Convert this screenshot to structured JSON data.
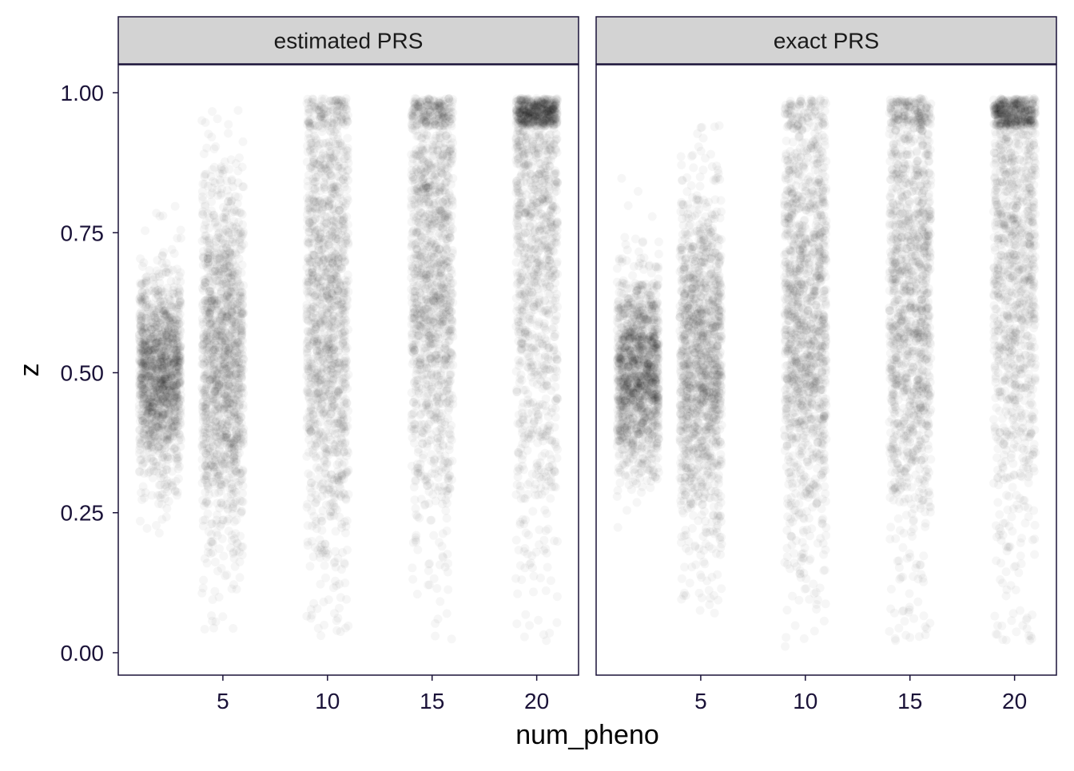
{
  "chart_data": {
    "type": "scatter",
    "xlabel": "num_pheno",
    "ylabel": "z",
    "xlim": [
      0,
      22
    ],
    "ylim": [
      -0.04,
      1.05
    ],
    "xticks": [
      5,
      10,
      15,
      20
    ],
    "yticks": [
      0.0,
      0.25,
      0.5,
      0.75,
      1.0
    ],
    "xtick_labels": [
      "5",
      "10",
      "15",
      "20"
    ],
    "ytick_labels": [
      "0.00",
      "0.25",
      "0.50",
      "0.75",
      "1.00"
    ],
    "point_color": "#000000",
    "point_alpha": 0.035,
    "jitter_width": 2.0,
    "x": [
      2,
      5,
      10,
      15,
      20
    ],
    "panels": [
      {
        "title": "estimated PRS",
        "groups": [
          {
            "x": 2,
            "center": 0.5,
            "spread": 0.09,
            "min": 0.07,
            "max": 0.95
          },
          {
            "x": 5,
            "center": 0.52,
            "spread": 0.17,
            "min": 0.04,
            "max": 0.97
          },
          {
            "x": 10,
            "center": 0.62,
            "spread": 0.24,
            "min": 0.03,
            "max": 0.99
          },
          {
            "x": 15,
            "center": 0.68,
            "spread": 0.24,
            "min": 0.02,
            "max": 0.99
          },
          {
            "x": 20,
            "center": 0.82,
            "spread": 0.3,
            "min": 0.02,
            "max": 0.99
          }
        ]
      },
      {
        "title": "exact PRS",
        "groups": [
          {
            "x": 2,
            "center": 0.5,
            "spread": 0.09,
            "min": 0.09,
            "max": 0.94
          },
          {
            "x": 5,
            "center": 0.52,
            "spread": 0.15,
            "min": 0.07,
            "max": 0.98
          },
          {
            "x": 10,
            "center": 0.6,
            "spread": 0.22,
            "min": 0.01,
            "max": 0.99
          },
          {
            "x": 15,
            "center": 0.66,
            "spread": 0.24,
            "min": 0.02,
            "max": 0.99
          },
          {
            "x": 20,
            "center": 0.78,
            "spread": 0.32,
            "min": 0.02,
            "max": 0.99
          }
        ]
      }
    ]
  }
}
